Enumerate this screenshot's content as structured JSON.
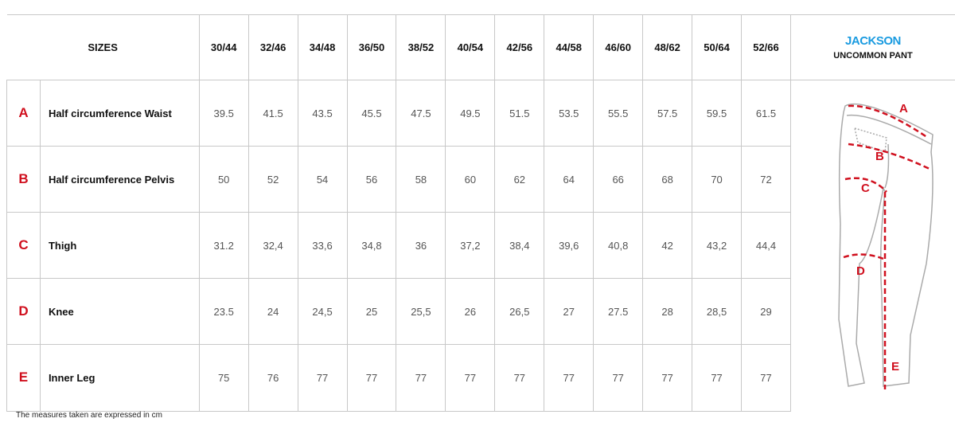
{
  "header": {
    "sizes_label": "SIZES",
    "sizes": [
      "30/44",
      "32/46",
      "34/48",
      "36/50",
      "38/52",
      "40/54",
      "42/56",
      "44/58",
      "46/60",
      "48/62",
      "50/64",
      "52/66"
    ]
  },
  "brand": {
    "name": "JACKSON",
    "subtitle": "UNCOMMON PANT",
    "name_color": "#1a9be0",
    "accent_color": "#d0101e"
  },
  "rows": [
    {
      "letter": "A",
      "label": "Half circumference Waist",
      "values": [
        "39.5",
        "41.5",
        "43.5",
        "45.5",
        "47.5",
        "49.5",
        "51.5",
        "53.5",
        "55.5",
        "57.5",
        "59.5",
        "61.5"
      ]
    },
    {
      "letter": "B",
      "label": "Half circumference Pelvis",
      "values": [
        "50",
        "52",
        "54",
        "56",
        "58",
        "60",
        "62",
        "64",
        "66",
        "68",
        "70",
        "72"
      ]
    },
    {
      "letter": "C",
      "label": "Thigh",
      "values": [
        "31.2",
        "32,4",
        "33,6",
        "34,8",
        "36",
        "37,2",
        "38,4",
        "39,6",
        "40,8",
        "42",
        "43,2",
        "44,4"
      ]
    },
    {
      "letter": "D",
      "label": "Knee",
      "values": [
        "23.5",
        "24",
        "24,5",
        "25",
        "25,5",
        "26",
        "26,5",
        "27",
        "27.5",
        "28",
        "28,5",
        "29"
      ]
    },
    {
      "letter": "E",
      "label": "Inner Leg",
      "values": [
        "75",
        "76",
        "77",
        "77",
        "77",
        "77",
        "77",
        "77",
        "77",
        "77",
        "77",
        "77"
      ]
    }
  ],
  "diagram": {
    "markers": [
      "A",
      "B",
      "C",
      "D",
      "E"
    ]
  },
  "footnote": "The measures taken are expressed in cm"
}
